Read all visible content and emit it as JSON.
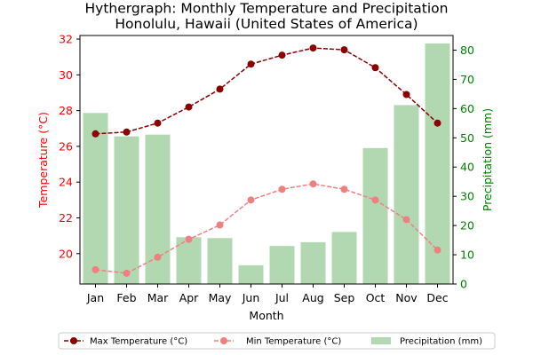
{
  "chart_data": {
    "type": "bar+line",
    "title": "Hythergraph: Monthly Temperature and Precipitation",
    "subtitle": "Honolulu, Hawaii (United States of America)",
    "xlabel": "Month",
    "ylabel_left": "Temperature (°C)",
    "ylabel_right": "Precipitation (mm)",
    "categories": [
      "Jan",
      "Feb",
      "Mar",
      "Apr",
      "May",
      "Jun",
      "Jul",
      "Aug",
      "Sep",
      "Oct",
      "Nov",
      "Dec"
    ],
    "ylim_left": [
      18.3,
      32.2
    ],
    "yticks_left": [
      20,
      22,
      24,
      26,
      28,
      30,
      32
    ],
    "ylim_right": [
      0,
      85
    ],
    "yticks_right": [
      0,
      10,
      20,
      30,
      40,
      50,
      60,
      70,
      80
    ],
    "grid": false,
    "legend_position": "bottom",
    "series": [
      {
        "name": "Max Temperature (°C)",
        "kind": "line",
        "axis": "left",
        "color": "#8b0000",
        "values": [
          26.7,
          26.8,
          27.3,
          28.2,
          29.2,
          30.6,
          31.1,
          31.5,
          31.4,
          30.4,
          28.9,
          27.3
        ]
      },
      {
        "name": "Min Temperature (°C)",
        "kind": "line",
        "axis": "left",
        "color": "#f08080",
        "values": [
          19.1,
          18.9,
          19.8,
          20.8,
          21.6,
          23.0,
          23.6,
          23.9,
          23.6,
          23.0,
          21.9,
          20.2
        ]
      },
      {
        "name": "Precipitation (mm)",
        "kind": "bar",
        "axis": "right",
        "color": "#b2d8b2",
        "values": [
          58.5,
          50.5,
          51.1,
          16.0,
          15.7,
          6.4,
          13.0,
          14.3,
          17.8,
          46.5,
          61.2,
          82.3
        ]
      }
    ],
    "colors": {
      "left_axis": "#ff0000",
      "right_axis": "#008000",
      "bar": "#b2d8b2",
      "max_line": "#8b0000",
      "min_line": "#f08080"
    }
  }
}
